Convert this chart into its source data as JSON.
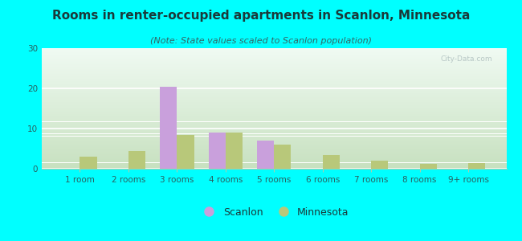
{
  "title": "Rooms in renter-occupied apartments in Scanlon, Minnesota",
  "subtitle": "(Note: State values scaled to Scanlon population)",
  "categories": [
    "1 room",
    "2 rooms",
    "3 rooms",
    "4 rooms",
    "5 rooms",
    "6 rooms",
    "7 rooms",
    "8 rooms",
    "9+ rooms"
  ],
  "scanlon_values": [
    0,
    0,
    20.5,
    9,
    7,
    0,
    0,
    0,
    0
  ],
  "minnesota_values": [
    3,
    4.5,
    8.5,
    9,
    6,
    3.5,
    2,
    1.2,
    1.5
  ],
  "scanlon_color": "#c9a0dc",
  "minnesota_color": "#b8c87a",
  "ylim": [
    0,
    30
  ],
  "yticks": [
    0,
    10,
    20,
    30
  ],
  "bg_color": "#00ffff",
  "plot_bg_top": "#eef8f0",
  "plot_bg_bottom": "#c8dfc0",
  "title_fontsize": 11,
  "subtitle_fontsize": 8,
  "tick_fontsize": 7.5,
  "legend_fontsize": 9,
  "bar_width": 0.35
}
